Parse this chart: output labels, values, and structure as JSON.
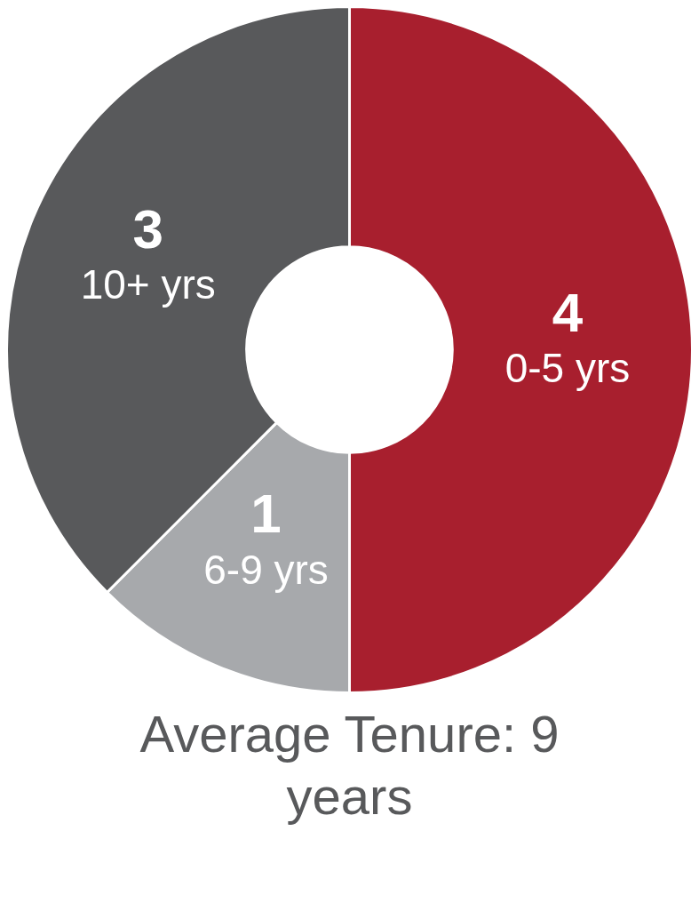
{
  "chart_data": {
    "type": "donut",
    "title": "Average Tenure: 9 years",
    "categories": [
      "0-5 yrs",
      "6-9 yrs",
      "10+ yrs"
    ],
    "values": [
      4,
      1,
      3
    ],
    "colors": [
      "#a81f2e",
      "#a7a9ac",
      "#58595b"
    ],
    "data_labels": true,
    "legend": false
  }
}
